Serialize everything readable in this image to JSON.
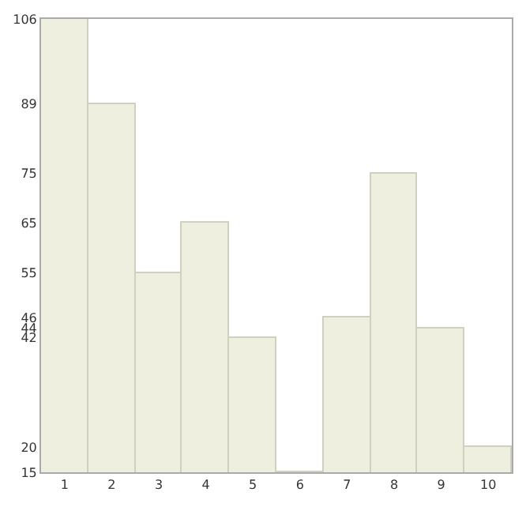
{
  "chart_data": {
    "type": "bar",
    "categories": [
      "1",
      "2",
      "3",
      "4",
      "5",
      "6",
      "7",
      "8",
      "9",
      "10"
    ],
    "values": [
      106,
      89,
      55,
      65,
      42,
      15,
      46,
      75,
      44,
      20
    ],
    "color": "#efefe0",
    "ylim": [
      15,
      106
    ],
    "yticks": [
      15,
      20,
      42,
      44,
      46,
      55,
      65,
      75,
      89,
      106
    ]
  }
}
